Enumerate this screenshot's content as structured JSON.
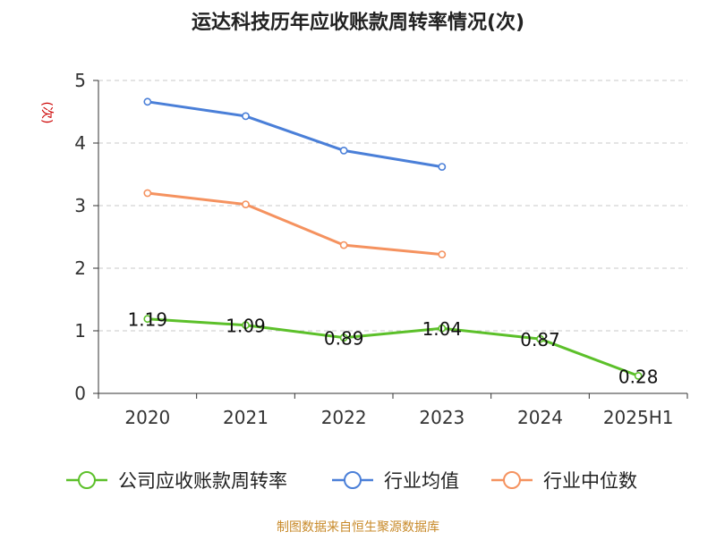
{
  "chart_data": {
    "type": "line",
    "title": "运达科技历年应收账款周转率情况(次)",
    "ylabel": "(次)",
    "xlabel": "",
    "categories": [
      "2020",
      "2021",
      "2022",
      "2023",
      "2024",
      "2025H1"
    ],
    "y_ticks": [
      "0",
      "1",
      "2",
      "3",
      "4",
      "5"
    ],
    "ylim": [
      0,
      5
    ],
    "grid": true,
    "legend_position": "bottom",
    "series": [
      {
        "name": "公司应收账款周转率",
        "color": "#5cc02a",
        "values": [
          1.19,
          1.09,
          0.89,
          1.04,
          0.87,
          0.28
        ],
        "labels": [
          "1.19",
          "1.09",
          "0.89",
          "1.04",
          "0.87",
          "0.28"
        ]
      },
      {
        "name": "行业均值",
        "color": "#4a7fd8",
        "values": [
          4.66,
          4.43,
          3.88,
          3.62,
          null,
          null
        ]
      },
      {
        "name": "行业中位数",
        "color": "#f5925f",
        "values": [
          3.2,
          3.02,
          2.37,
          2.22,
          null,
          null
        ]
      }
    ],
    "source": "制图数据来自恒生聚源数据库"
  }
}
